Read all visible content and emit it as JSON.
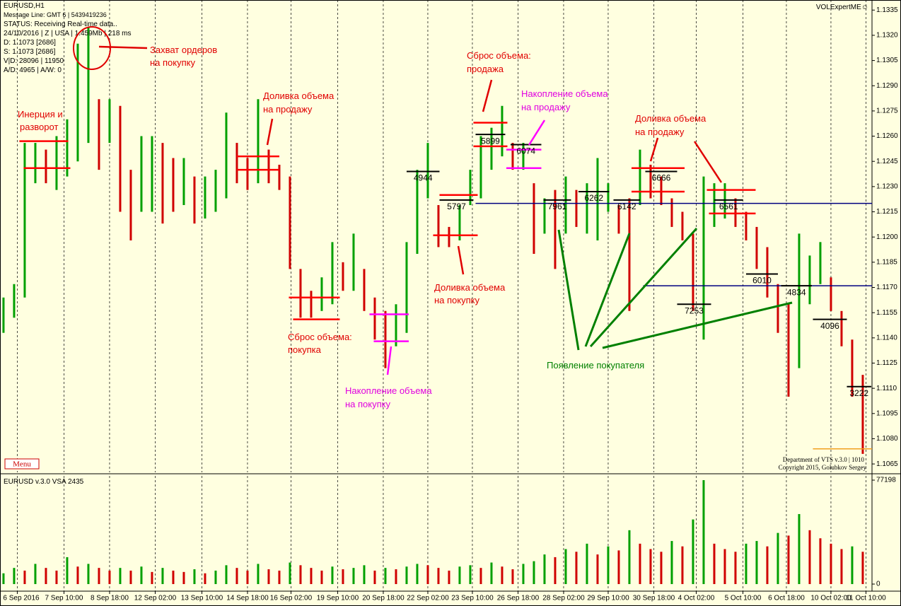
{
  "header": {
    "symbol": "EURUSD,H1",
    "message_line": "Message Line: GMT 6 | 5439419236",
    "status": "STATUS:  Receiving Real-time data..",
    "date_line": "24/10/2016 | Z | USA | 1.459Mb | 218 ms",
    "d_line": "D: 1.1073  [2686]",
    "s_line": "S: 1.1073  [2686]",
    "vd_line": "V|D: 28096 | 11950",
    "ad_line": "A/D: 4965 | A/W: 0",
    "brand": "VOLExpertME☺",
    "menu": "Menu",
    "footer1": "Department of VTS  v.3.0 | 1010",
    "footer2": "Copyright 2015, Golubkov Sergey"
  },
  "annotations": [
    [
      "Захват ордеров",
      "на покупку"
    ],
    [
      "Инерция и",
      "разворот"
    ],
    [
      "Доливка объема",
      "на продажу"
    ],
    [
      "Сброс объема:",
      "продажа"
    ],
    [
      "Накопление объема",
      "на продажу"
    ],
    [
      "Доливка объема",
      "на продажу"
    ],
    [
      "Сброс объема:",
      "покупка"
    ],
    [
      "Доливка объема",
      "на покупку"
    ],
    [
      "Накопление объема",
      "на покупку"
    ],
    [
      "Появление покупателя"
    ]
  ],
  "chart_data": [
    {
      "type": "hlbar",
      "title": "EURUSD,H1",
      "up_color": "#00a000",
      "down_color": "#d00000",
      "ylim": [
        1.106,
        1.1341
      ],
      "xlim": [
        -0.33,
        81.87
      ],
      "yticks": [
        1.1335,
        {
          "value": 1.132,
          "label": "1.1320"
        },
        1.1305,
        {
          "value": 1.129,
          "label": "1.1290"
        },
        1.1275,
        {
          "value": 1.126,
          "label": "1.1260"
        },
        1.1245,
        {
          "value": 1.123,
          "label": "1.1230"
        },
        1.1215,
        {
          "value": 1.12,
          "label": "1.1200"
        },
        1.1185,
        {
          "value": 1.117,
          "label": "1.1170"
        },
        1.1155,
        {
          "value": 1.114,
          "label": "1.1140"
        },
        1.1125,
        {
          "value": 1.111,
          "label": "1.1110"
        },
        1.1095,
        {
          "value": 1.108,
          "label": "1.1080"
        },
        1.1065
      ],
      "xticks": [
        {
          "value": 1.3,
          "label": "6 Sep 2016"
        },
        {
          "value": 5.7,
          "label": "7 Sep 10:00"
        },
        {
          "value": 10,
          "label": "8 Sep 18:00"
        },
        {
          "value": 14.3,
          "label": "12 Sep 02:00"
        },
        {
          "value": 18.7,
          "label": "13 Sep 10:00"
        },
        {
          "value": 23,
          "label": "14 Sep 18:00"
        },
        {
          "value": 27.1,
          "label": "16 Sep 02:00"
        },
        {
          "value": 31.5,
          "label": "19 Sep 10:00"
        },
        {
          "value": 35.8,
          "label": "20 Sep 18:00"
        },
        {
          "value": 40,
          "label": "22 Sep 02:00"
        },
        {
          "value": 44.2,
          "label": "23 Sep 10:00"
        },
        {
          "value": 48.5,
          "label": "26 Sep 18:00"
        },
        {
          "value": 52.8,
          "label": "28 Sep 02:00"
        },
        {
          "value": 57,
          "label": "29 Sep 10:00"
        },
        {
          "value": 61.3,
          "label": "30 Sep 18:00"
        },
        {
          "value": 65.3,
          "label": "4 Oct 02:00"
        },
        {
          "value": 69.7,
          "label": "5 Oct 10:00"
        },
        {
          "value": 73.8,
          "label": "6 Oct 18:00"
        },
        {
          "value": 78,
          "label": "10 Oct 02:00"
        },
        {
          "value": 81.3,
          "label": "11 Oct 10:00"
        }
      ],
      "high": [
        1.1164,
        1.1172,
        1.1256,
        1.1256,
        1.1252,
        1.126,
        1.127,
        1.1315,
        1.1325,
        1.1282,
        1.1282,
        1.1278,
        1.124,
        1.126,
        1.126,
        1.1256,
        1.1247,
        1.1247,
        1.1236,
        1.1236,
        1.124,
        1.1274,
        1.1256,
        1.1247,
        1.1282,
        1.1252,
        1.1243,
        1.1236,
        1.1181,
        1.1168,
        1.1176,
        1.1197,
        1.1185,
        1.1202,
        1.1181,
        1.1164,
        1.1156,
        1.116,
        1.1197,
        1.124,
        1.1256,
        1.1219,
        1.1206,
        1.1219,
        1.124,
        1.126,
        1.1265,
        1.1278,
        1.1256,
        1.1256,
        1.1232,
        1.1223,
        1.1228,
        1.1236,
        1.1228,
        1.1232,
        1.1247,
        1.1232,
        1.1219,
        1.1223,
        1.1252,
        1.1243,
        1.1236,
        1.1223,
        1.1215,
        1.1202,
        1.1236,
        1.1232,
        1.1232,
        1.1223,
        1.1215,
        1.1206,
        1.1194,
        1.1172,
        1.116,
        1.1202,
        1.1189,
        1.1197,
        1.1176,
        1.1156,
        1.1139,
        1.1118
      ],
      "low": [
        1.1143,
        1.1152,
        1.1164,
        1.1232,
        1.1232,
        1.1228,
        1.1236,
        1.1245,
        1.1256,
        1.124,
        1.1256,
        1.1215,
        1.1198,
        1.1215,
        1.1215,
        1.1208,
        1.1215,
        1.1219,
        1.1208,
        1.1211,
        1.1215,
        1.1223,
        1.1232,
        1.1228,
        1.1232,
        1.1232,
        1.1228,
        1.1181,
        1.1152,
        1.1152,
        1.1156,
        1.116,
        1.1168,
        1.1168,
        1.1156,
        1.1139,
        1.1122,
        1.1135,
        1.1143,
        1.119,
        1.1223,
        1.1194,
        1.1194,
        1.1198,
        1.1219,
        1.1223,
        1.124,
        1.1248,
        1.124,
        1.124,
        1.119,
        1.1202,
        1.1181,
        1.1202,
        1.1206,
        1.1202,
        1.1198,
        1.1215,
        1.1202,
        1.1156,
        1.1219,
        1.1223,
        1.1219,
        1.1206,
        1.1198,
        1.1156,
        1.1139,
        1.1206,
        1.1211,
        1.1206,
        1.1198,
        1.1181,
        1.1164,
        1.1143,
        1.1105,
        1.1122,
        1.116,
        1.1172,
        1.1156,
        1.1135,
        1.1105,
        1.1071
      ],
      "levels": [
        {
          "price": 1.122,
          "from": 44.5,
          "to": 81.87,
          "color": "#000080"
        },
        {
          "price": 1.1171,
          "from": 60.3,
          "to": 81.87,
          "color": "#000080"
        },
        {
          "price": 1.1074,
          "from": 76.3,
          "to": 81.87,
          "color": "#f0a020"
        }
      ],
      "zones": [
        {
          "price": 1.1257,
          "from": 1.5,
          "to": 6.1,
          "color": "#ff0000"
        },
        {
          "price": 1.1241,
          "from": 1.9,
          "to": 6.3,
          "color": "#ff0000"
        },
        {
          "price": 1.1248,
          "from": 22,
          "to": 26,
          "color": "#ff0000"
        },
        {
          "price": 1.124,
          "from": 22,
          "to": 26,
          "color": "#ff0000"
        },
        {
          "price": 1.1164,
          "from": 26.9,
          "to": 31.7,
          "color": "#ff0000"
        },
        {
          "price": 1.1151,
          "from": 27.3,
          "to": 31.7,
          "color": "#ff0000"
        },
        {
          "price": 1.1225,
          "from": 41.1,
          "to": 44.7,
          "color": "#ff0000"
        },
        {
          "price": 1.1201,
          "from": 40.5,
          "to": 44.7,
          "color": "#ff0000"
        },
        {
          "price": 1.1268,
          "from": 44.3,
          "to": 47.5,
          "color": "#ff0000"
        },
        {
          "price": 1.1254,
          "from": 44.3,
          "to": 47.5,
          "color": "#ff0000"
        },
        {
          "price": 1.1241,
          "from": 59.2,
          "to": 64.2,
          "color": "#ff0000"
        },
        {
          "price": 1.1227,
          "from": 59.2,
          "to": 64.2,
          "color": "#ff0000"
        },
        {
          "price": 1.1228,
          "from": 66.3,
          "to": 70.9,
          "color": "#ff0000"
        },
        {
          "price": 1.1214,
          "from": 66.5,
          "to": 70.9,
          "color": "#ff0000"
        },
        {
          "price": 1.1154,
          "from": 34.5,
          "to": 38.2,
          "color": "#ff00ff"
        },
        {
          "price": 1.1138,
          "from": 34.9,
          "to": 38.2,
          "color": "#ff00ff"
        },
        {
          "price": 1.1252,
          "from": 47.4,
          "to": 50.7,
          "color": "#ff00ff"
        },
        {
          "price": 1.1241,
          "from": 47.4,
          "to": 50.7,
          "color": "#ff00ff"
        }
      ],
      "volume_levels": [
        {
          "volume": 4944,
          "price": 1.1239,
          "from": 38,
          "to": 41.1
        },
        {
          "volume": 5797,
          "price": 1.1222,
          "from": 41.1,
          "to": 44.3
        },
        {
          "volume": 5899,
          "price": 1.1261,
          "from": 44.5,
          "to": 47.3
        },
        {
          "volume": 6074,
          "price": 1.1255,
          "from": 47.8,
          "to": 50.7
        },
        {
          "volume": 7961,
          "price": 1.1222,
          "from": 50.9,
          "to": 53.5
        },
        {
          "volume": 6262,
          "price": 1.1227,
          "from": 54.2,
          "to": 57.1
        },
        {
          "volume": 6142,
          "price": 1.1222,
          "from": 57.5,
          "to": 60
        },
        {
          "volume": 6666,
          "price": 1.1239,
          "from": 60.5,
          "to": 63.5
        },
        {
          "volume": 7253,
          "price": 1.116,
          "from": 63.5,
          "to": 66.7
        },
        {
          "volume": 6561,
          "price": 1.1222,
          "from": 67,
          "to": 69.7
        },
        {
          "volume": 6010,
          "price": 1.1178,
          "from": 70,
          "to": 73
        },
        {
          "volume": 4834,
          "price": 1.1171,
          "from": 73.3,
          "to": 76.2
        },
        {
          "volume": 4096,
          "price": 1.1151,
          "from": 76.3,
          "to": 79.5
        },
        {
          "volume": 3222,
          "price": 1.1111,
          "from": 79.5,
          "to": 81.8
        }
      ]
    },
    {
      "type": "bar",
      "title": "EURUSD v.3.0 VSA 2435",
      "ylim": [
        -5250,
        80350
      ],
      "xlim": [
        -0.33,
        81.87
      ],
      "yticks": [
        77198,
        0
      ],
      "values": [
        8000,
        12000,
        10000,
        15000,
        12000,
        10000,
        20000,
        13000,
        15000,
        12000,
        10000,
        12000,
        10000,
        13000,
        9000,
        12000,
        10000,
        9000,
        11000,
        8000,
        10000,
        14000,
        12000,
        10000,
        15000,
        11000,
        10000,
        16000,
        14000,
        12000,
        10000,
        13000,
        11000,
        12000,
        14000,
        10000,
        12000,
        11000,
        13000,
        15000,
        14000,
        12000,
        10000,
        13000,
        14000,
        12000,
        16000,
        13000,
        11000,
        15000,
        17000,
        22000,
        20000,
        26000,
        24000,
        30000,
        22000,
        28000,
        25000,
        40000,
        30000,
        26000,
        24000,
        32000,
        28000,
        48000,
        77198,
        30000,
        26000,
        24000,
        30000,
        32000,
        28000,
        38000,
        36000,
        52000,
        40000,
        34000,
        30000,
        26000,
        28000,
        24000
      ]
    }
  ]
}
